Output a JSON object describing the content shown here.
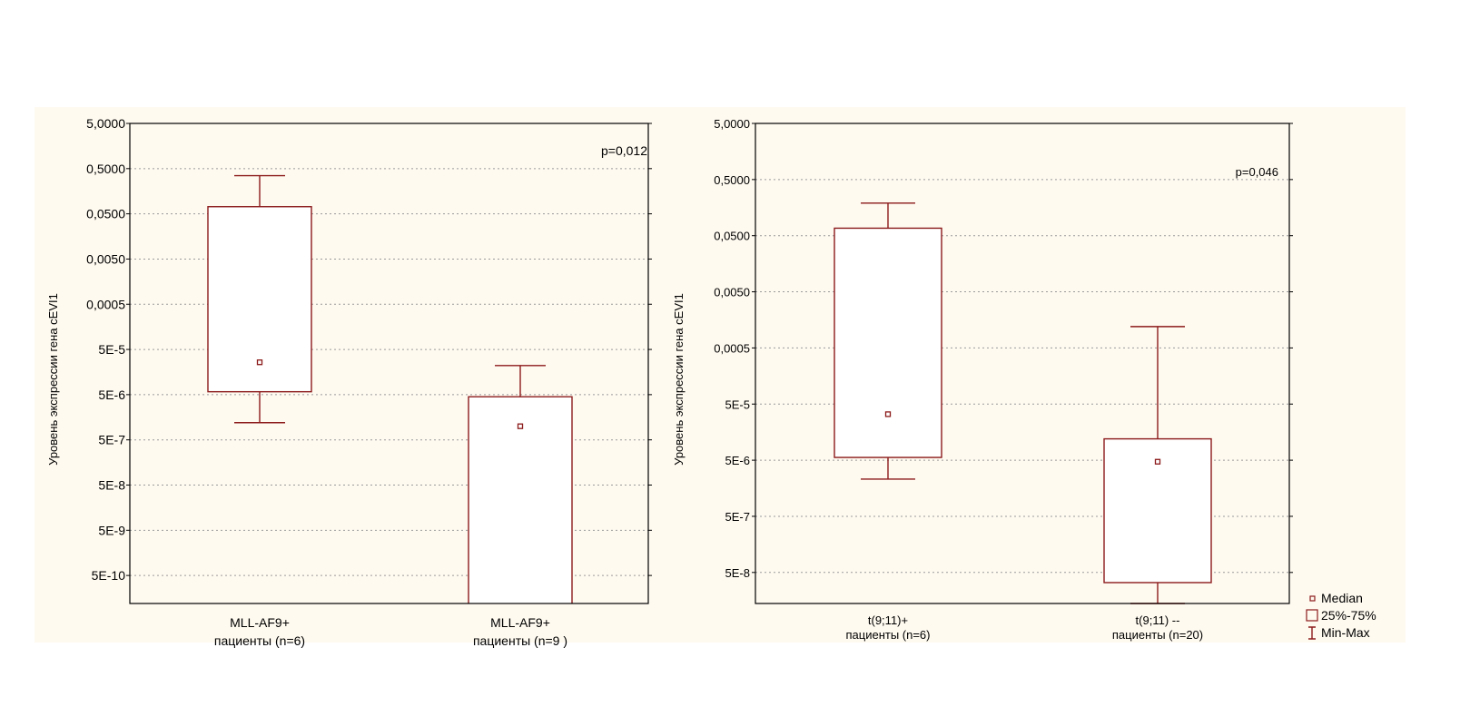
{
  "colors": {
    "panel_bg": "#fffaf0",
    "box": "#8b1a1a",
    "grid": "#9a9a9a",
    "axis": "#000000"
  },
  "legend": {
    "placement": "bottom-right",
    "items": [
      {
        "label": "Median",
        "symbol": "median-square-icon"
      },
      {
        "label": "25%-75%",
        "symbol": "box-icon"
      },
      {
        "label": "Min-Max",
        "symbol": "whisker-icon"
      }
    ]
  },
  "chart_data": [
    {
      "type": "box",
      "ylabel": "Уровень экспрессии гена сEVI1",
      "yscale": "log",
      "yticks": [
        "5,0000",
        "0,5000",
        "0,0500",
        "0,0050",
        "0,0005",
        "5E-5",
        "5E-6",
        "5E-7",
        "5E-8",
        "5E-9",
        "5E-10"
      ],
      "ytick_values": [
        5,
        0.5,
        0.05,
        0.005,
        0.0005,
        5e-05,
        5e-06,
        5e-07,
        5e-08,
        5e-09,
        5e-10
      ],
      "ylim": [
        1.2e-10,
        5
      ],
      "grid": true,
      "annotation": "p=0,012",
      "groups": [
        {
          "label_line1": "MLL-AF9+",
          "label_line2": "пациенты (n=6)",
          "min": 1.2e-06,
          "q1": 5.8e-06,
          "median": 2.6e-05,
          "q3": 0.072,
          "max": 0.35
        },
        {
          "label_line1": "MLL-AF9+",
          "label_line2": "пациенты (n=9 )",
          "min": 1.2e-10,
          "q1": 1.2e-10,
          "median": 1e-06,
          "q3": 4.5e-06,
          "max": 2.2e-05
        }
      ]
    },
    {
      "type": "box",
      "ylabel": "Уровень экспрессии гена сEVI1",
      "yscale": "log",
      "yticks": [
        "5,0000",
        "0,5000",
        "0,0500",
        "0,0050",
        "0,0005",
        "5E-5",
        "5E-6",
        "5E-7",
        "5E-8"
      ],
      "ytick_values": [
        5,
        0.5,
        0.05,
        0.005,
        0.0005,
        5e-05,
        5e-06,
        5e-07,
        5e-08
      ],
      "ylim": [
        1.4e-08,
        5
      ],
      "grid": true,
      "annotation": "p=0,046",
      "groups": [
        {
          "label_line1": "t(9;11)+",
          "label_line2": "пациенты (n=6)",
          "min": 2.3e-06,
          "q1": 5.6e-06,
          "median": 3.3e-05,
          "q3": 0.068,
          "max": 0.19
        },
        {
          "label_line1": "t(9;11) --",
          "label_line2": "пациенты (n=20)",
          "min": 1.4e-08,
          "q1": 3.3e-08,
          "median": 4.7e-06,
          "q3": 1.2e-05,
          "max": 0.0012
        }
      ]
    }
  ]
}
